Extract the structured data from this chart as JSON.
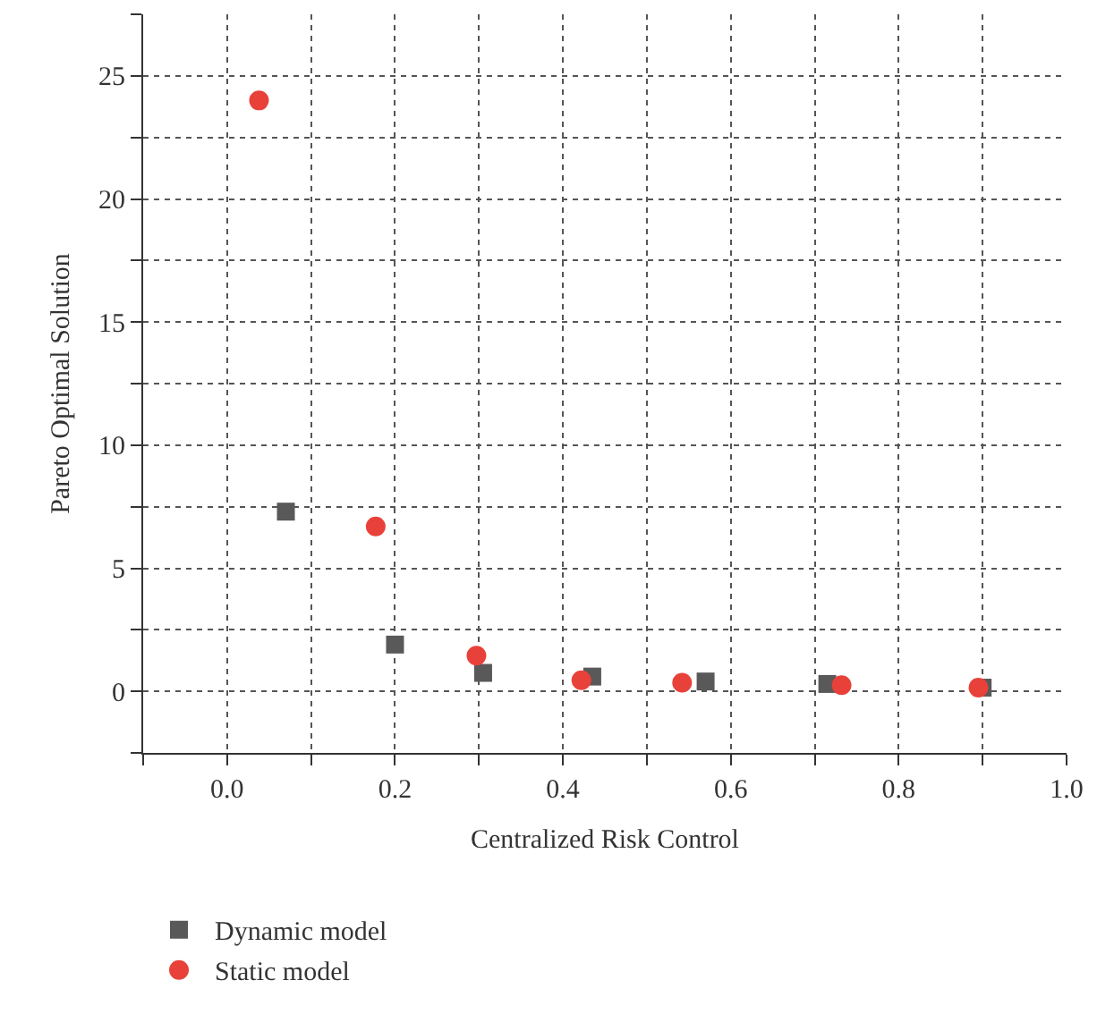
{
  "chart_data": {
    "type": "scatter",
    "xlabel": "Centralized Risk Control",
    "ylabel": "Pareto Optimal Solution",
    "xlim": [
      -0.1,
      1.0
    ],
    "xticks": [
      {
        "value": 0,
        "label": "0.0"
      },
      {
        "value": 0.2,
        "label": "0.2"
      },
      {
        "value": 0.4,
        "label": "0.4"
      },
      {
        "value": 0.6,
        "label": "0.6"
      },
      {
        "value": 0.8,
        "label": "0.8"
      },
      {
        "value": 1.0,
        "label": "1.0"
      }
    ],
    "ylim": [
      -2.5,
      27.5
    ],
    "yticks": [
      0,
      5,
      10,
      15,
      20,
      25
    ],
    "grid": true,
    "legend": "bottom left",
    "series": [
      {
        "name": "Dynamic model",
        "color": "#595959",
        "marker": "square",
        "x": [
          0.07,
          0.2,
          0.305,
          0.435,
          0.57,
          0.715,
          0.9
        ],
        "values": [
          7.3,
          1.9,
          0.75,
          0.6,
          0.4,
          0.3,
          0.15
        ]
      },
      {
        "name": "Static model",
        "color": "#e8413a",
        "marker": "circle",
        "x": [
          0.038,
          0.177,
          0.297,
          0.422,
          0.542,
          0.732,
          0.895
        ],
        "values": [
          24.0,
          6.7,
          1.45,
          0.45,
          0.35,
          0.25,
          0.15
        ]
      }
    ]
  }
}
